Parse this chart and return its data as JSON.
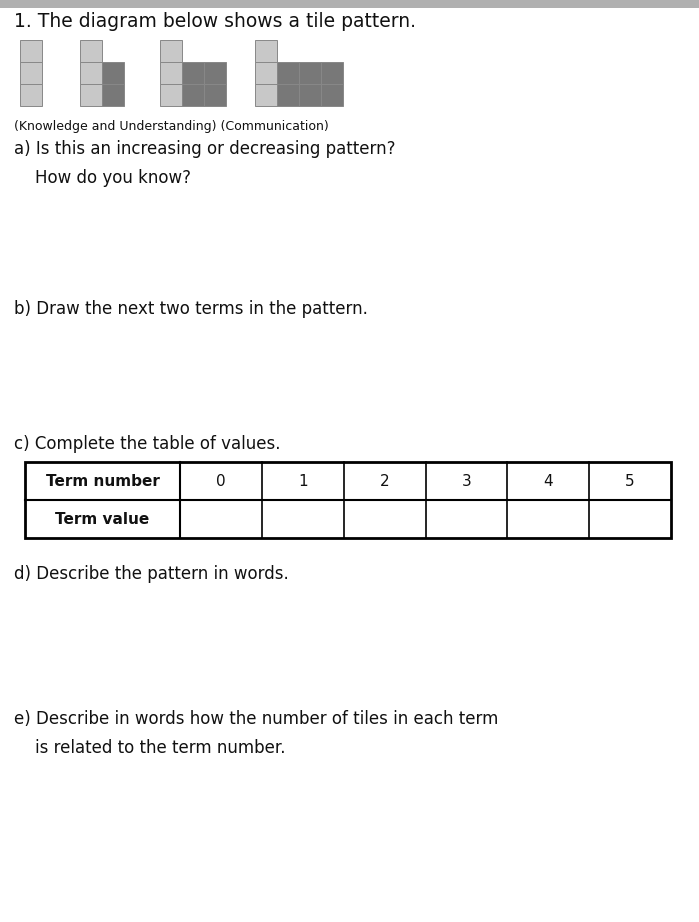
{
  "title": "1. The diagram below shows a tile pattern.",
  "subtitle": "(Knowledge and Understanding) (Communication)",
  "question_a": "a) Is this an increasing or decreasing pattern?\n    How do you know?",
  "question_b": "b) Draw the next two terms in the pattern.",
  "question_c": "c) Complete the table of values.",
  "question_d": "d) Describe the pattern in words.",
  "question_e": "e) Describe in words how the number of tiles in each term\n    is related to the term number.",
  "table_headers": [
    "Term number",
    "0",
    "1",
    "2",
    "3",
    "4",
    "5"
  ],
  "table_row2": [
    "Term value",
    "",
    "",
    "",
    "",
    "",
    ""
  ],
  "bg_color": "#ffffff",
  "light_tile": "#c8c8c8",
  "dark_tile": "#787878",
  "tile_border": "#888888",
  "text_color": "#111111",
  "title_fontsize": 13.5,
  "body_fontsize": 12,
  "small_fontsize": 9
}
